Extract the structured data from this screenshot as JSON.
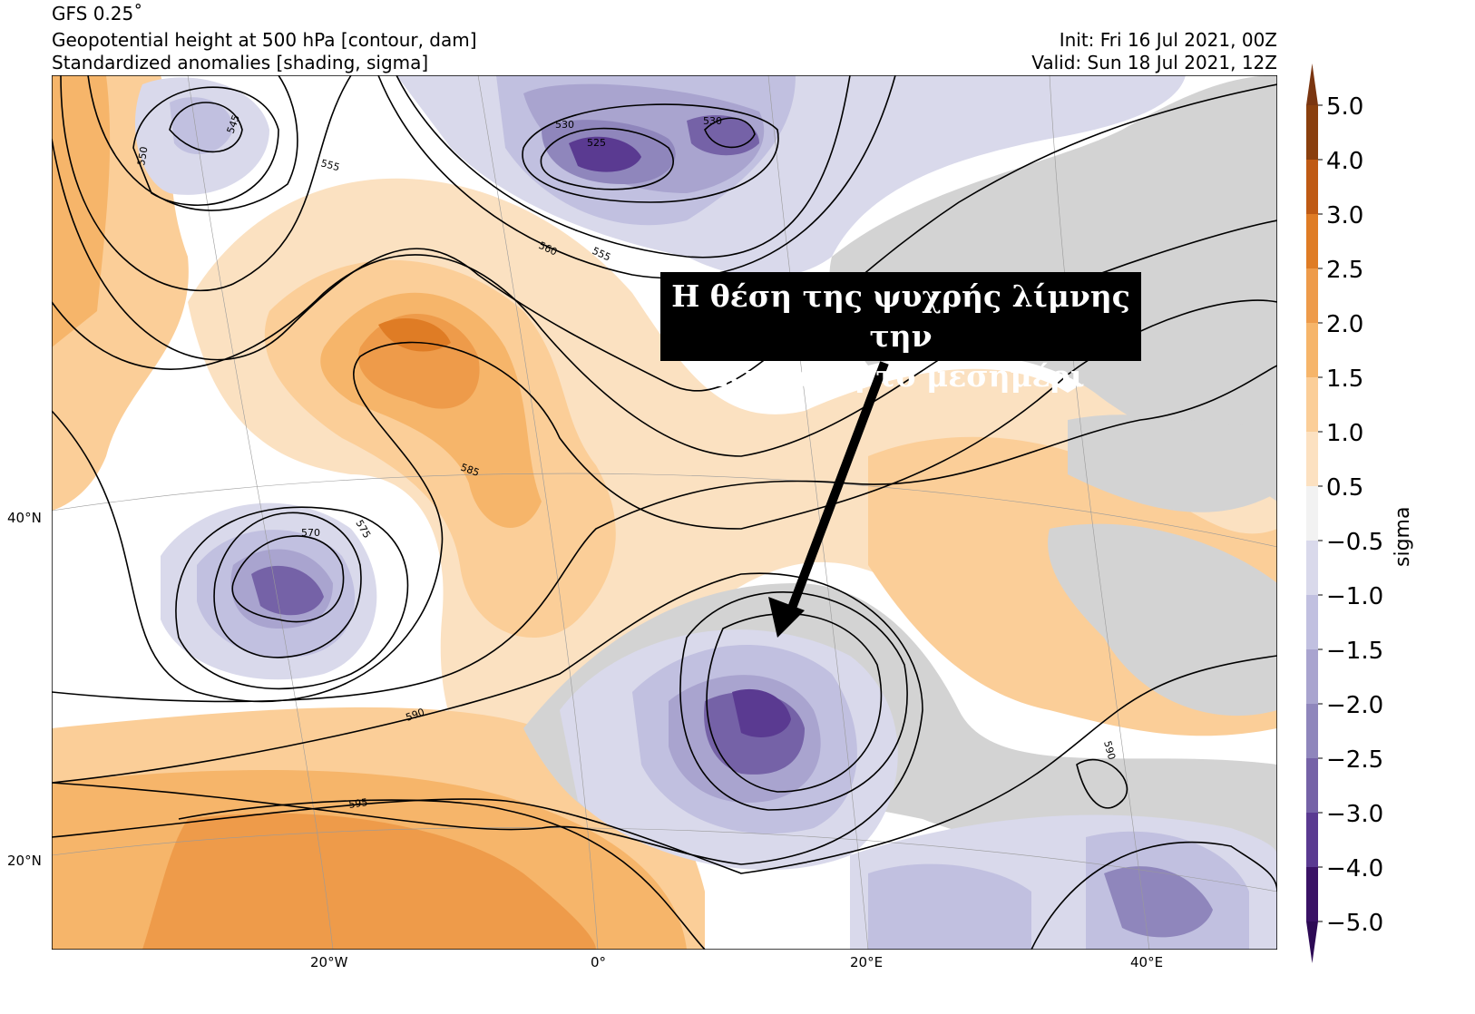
{
  "header": {
    "model": "GFS 0.25˚",
    "line2": "Geopotential height at 500 hPa [contour, dam]",
    "line3": "Standardized anomalies [shading, sigma]",
    "init": "Init: Fri 16 Jul 2021, 00Z",
    "valid": "Valid: Sun 18 Jul 2021, 12Z"
  },
  "annotation": {
    "line1": "Η θέση της ψυχρής λίμνης την",
    "line2": "Κυριακή το μεσημέρι"
  },
  "axes": {
    "lat_labels": [
      "40°N",
      "20°N"
    ],
    "lon_labels": [
      "20°W",
      "0°",
      "20°E",
      "40°E"
    ]
  },
  "chart_data": {
    "type": "heatmap",
    "title": "Geopotential height at 500 hPa with standardized anomalies",
    "colorbar": {
      "label": "sigma",
      "ticks": [
        "5.0",
        "4.0",
        "3.0",
        "2.5",
        "2.0",
        "1.5",
        "1.0",
        "0.5",
        "−0.5",
        "−1.0",
        "−1.5",
        "−2.0",
        "−2.5",
        "−3.0",
        "−4.0",
        "−5.0"
      ],
      "levels": [
        5.0,
        4.0,
        3.0,
        2.5,
        2.0,
        1.5,
        1.0,
        0.5,
        -0.5,
        -1.0,
        -1.5,
        -2.0,
        -2.5,
        -3.0,
        -4.0,
        -5.0
      ],
      "colors": [
        "#8a3f0e",
        "#bf5a14",
        "#df7c25",
        "#ee9b4a",
        "#f6b56a",
        "#fbce98",
        "#fce1c1",
        "#f2f2f2",
        "#d9d9eb",
        "#c1c0e0",
        "#a9a4cf",
        "#8f86bc",
        "#7562a7",
        "#5a3a91",
        "#3a1266"
      ],
      "extend_colors": [
        "#7a3510",
        "#2d0a55"
      ]
    },
    "contour_labels": [
      "530",
      "525",
      "530",
      "550",
      "545",
      "555",
      "560",
      "555",
      "570",
      "575",
      "585",
      "590",
      "595",
      "590"
    ],
    "contour_units": "dam"
  }
}
